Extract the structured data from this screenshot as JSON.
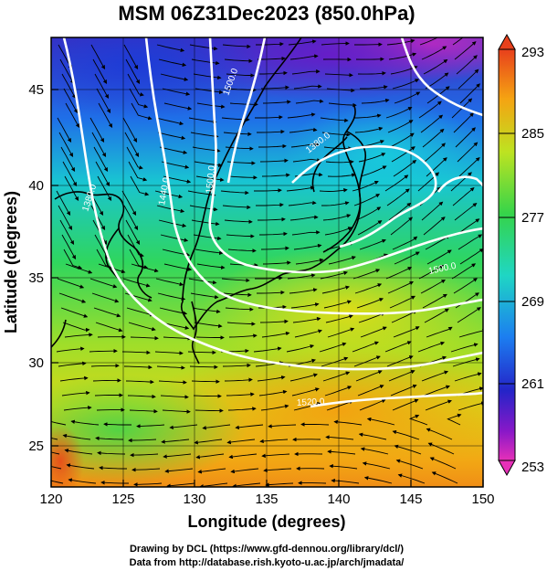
{
  "title": "MSM 06Z31Dec2023 (850.0hPa)",
  "xlabel": "Longitude (degrees)",
  "ylabel": "Latitude  (degrees)",
  "x_ticks": [
    "120",
    "125",
    "130",
    "135",
    "140",
    "145",
    "150"
  ],
  "y_ticks": [
    "25",
    "30",
    "35",
    "40",
    "45"
  ],
  "colorbar": {
    "labels": [
      "293",
      "285",
      "277",
      "269",
      "261",
      "253"
    ]
  },
  "contour_labels": [
    "1380.0",
    "1440.0",
    "1500.0",
    "1500.0",
    "1380.0",
    "1500.0",
    "1520.0"
  ],
  "credits": {
    "line1": "Drawing by DCL (https://www.gfd-dennou.org/library/dcl/)",
    "line2": "Data from http://database.rish.kyoto-u.ac.jp/arch/jmadata/"
  },
  "chart_data": {
    "type": "heatmap",
    "title": "MSM 06Z31Dec2023 (850.0hPa)",
    "xlabel": "Longitude (degrees)",
    "ylabel": "Latitude  (degrees)",
    "xlim": [
      120,
      150
    ],
    "ylim": [
      22.4,
      47.6
    ],
    "color_range": [
      253,
      293
    ],
    "field_samples": [
      {
        "lon": 120,
        "lat": 47,
        "value": 266
      },
      {
        "lon": 127,
        "lat": 47,
        "value": 262
      },
      {
        "lon": 133,
        "lat": 47,
        "value": 259
      },
      {
        "lon": 140,
        "lat": 47,
        "value": 256
      },
      {
        "lon": 146,
        "lat": 47,
        "value": 254
      },
      {
        "lon": 150,
        "lat": 47,
        "value": 254
      },
      {
        "lon": 120,
        "lat": 40,
        "value": 270
      },
      {
        "lon": 128,
        "lat": 40,
        "value": 269
      },
      {
        "lon": 135,
        "lat": 40,
        "value": 270
      },
      {
        "lon": 140,
        "lat": 41,
        "value": 268
      },
      {
        "lon": 146,
        "lat": 40,
        "value": 272
      },
      {
        "lon": 150,
        "lat": 40,
        "value": 276
      },
      {
        "lon": 120,
        "lat": 33,
        "value": 276
      },
      {
        "lon": 130,
        "lat": 33,
        "value": 277
      },
      {
        "lon": 138,
        "lat": 35,
        "value": 278
      },
      {
        "lon": 145,
        "lat": 34,
        "value": 282
      },
      {
        "lon": 120,
        "lat": 27,
        "value": 281
      },
      {
        "lon": 130,
        "lat": 27,
        "value": 284
      },
      {
        "lon": 140,
        "lat": 27,
        "value": 286
      },
      {
        "lon": 148,
        "lat": 27,
        "value": 284
      },
      {
        "lon": 121,
        "lat": 23,
        "value": 292
      }
    ]
  }
}
